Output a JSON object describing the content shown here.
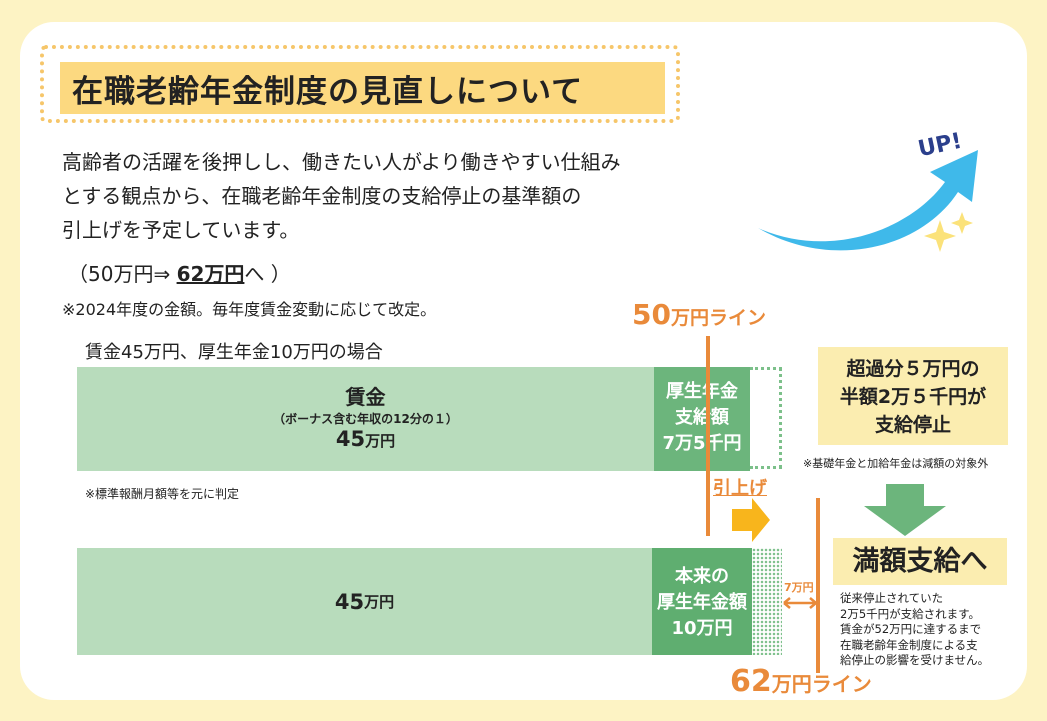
{
  "header": {
    "title": "在職老齢年金制度の見直しについて",
    "badge": "UP!"
  },
  "intro": {
    "lines": [
      "高齢者の活躍を後押しし、働きたい人がより働きやすい仕組み",
      "とする観点から、在職老齢年金制度の支給停止の基準額の",
      "引上げを予定しています。"
    ],
    "change": {
      "before": "（50万円⇒ ",
      "after": "62万円",
      "end": "へ ）"
    },
    "note": "※2024年度の金額。毎年度賃金変動に応じて改定。"
  },
  "case_label": "賃金45万円、厚生年金10万円の場合",
  "current": {
    "wage_title": "賃金",
    "wage_sub": "（ボーナス含む年収の12分の１）",
    "wage_amount": "45",
    "wage_unit": "万円",
    "pension_lines": [
      "厚生年金",
      "支給額",
      "7万5千円"
    ],
    "note": "※標準報酬月額等を元に判定"
  },
  "line50": {
    "amount": "50",
    "unit": "万円ライン"
  },
  "raise_label": "引上げ",
  "proposed": {
    "wage_amount": "45",
    "wage_unit": "万円",
    "pension_lines": [
      "本来の",
      "厚生年金額",
      "10万円"
    ],
    "gap": "7万円"
  },
  "line62": {
    "amount": "62",
    "unit": "万円ライン"
  },
  "stop_box": {
    "lines": [
      "超過分５万円の",
      "半額2万５千円が",
      "支給停止"
    ],
    "note": "※基礎年金と加給年金は減額の対象外"
  },
  "result": {
    "title": "満額支給へ",
    "lines": [
      "従来停止されていた",
      "2万5千円が支給されます。",
      "賃金が52万円に達するまで",
      "在職老齢年金制度による支",
      "給停止の影響を受けません。"
    ]
  }
}
